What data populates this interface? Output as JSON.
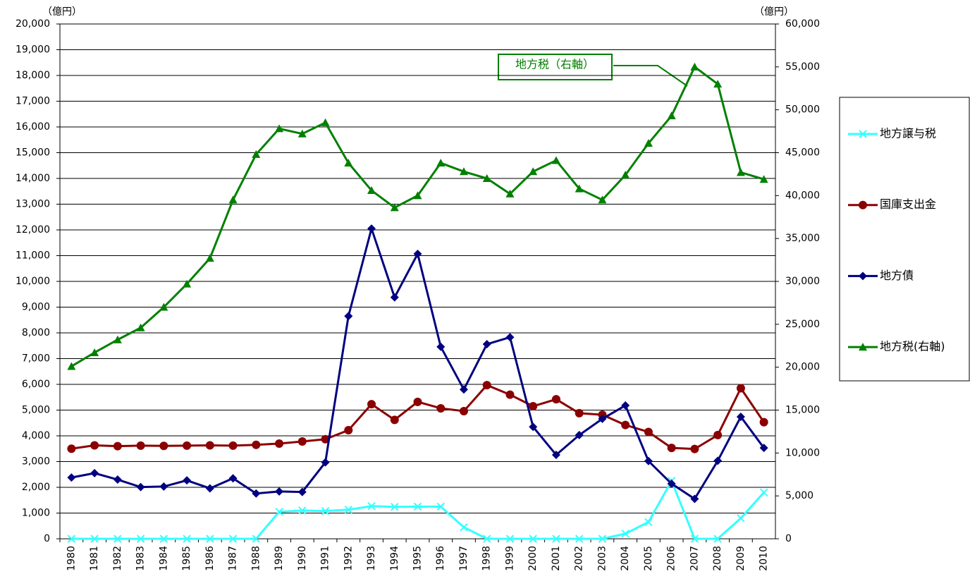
{
  "chart_data": {
    "type": "line",
    "y_unit_label": "（億円）",
    "y2_unit_label": "（億円）",
    "annotation": "地方税（右軸）",
    "categories": [
      "1980",
      "1981",
      "1982",
      "1983",
      "1984",
      "1985",
      "1986",
      "1987",
      "1988",
      "1989",
      "1990",
      "1991",
      "1992",
      "1993",
      "1994",
      "1995",
      "1996",
      "1997",
      "1998",
      "1999",
      "2000",
      "2001",
      "2002",
      "2003",
      "2004",
      "2005",
      "2006",
      "2007",
      "2008",
      "2009",
      "2010"
    ],
    "ylim": [
      0,
      20000
    ],
    "yticks": [
      0,
      {
        "value": 1000,
        "label": "1,000"
      },
      {
        "value": 2000,
        "label": "2,000"
      },
      {
        "value": 3000,
        "label": "3,000"
      },
      {
        "value": 4000,
        "label": "4,000"
      },
      {
        "value": 5000,
        "label": "5,000"
      },
      {
        "value": 6000,
        "label": "6,000"
      },
      {
        "value": 7000,
        "label": "7,000"
      },
      {
        "value": 8000,
        "label": "8,000"
      },
      {
        "value": 9000,
        "label": "9,000"
      },
      {
        "value": 10000,
        "label": "10,000"
      },
      {
        "value": 11000,
        "label": "11,000"
      },
      {
        "value": 12000,
        "label": "12,000"
      },
      {
        "value": 13000,
        "label": "13,000"
      },
      {
        "value": 14000,
        "label": "14,000"
      },
      {
        "value": 15000,
        "label": "15,000"
      },
      {
        "value": 16000,
        "label": "16,000"
      },
      {
        "value": 17000,
        "label": "17,000"
      },
      {
        "value": 18000,
        "label": "18,000"
      },
      {
        "value": 19000,
        "label": "19,000"
      },
      {
        "value": 20000,
        "label": "20,000"
      }
    ],
    "y2lim": [
      0,
      60000
    ],
    "y2ticks": [
      0,
      {
        "value": 5000,
        "label": "5,000"
      },
      {
        "value": 10000,
        "label": "10,000"
      },
      {
        "value": 15000,
        "label": "15,000"
      },
      {
        "value": 20000,
        "label": "20,000"
      },
      {
        "value": 25000,
        "label": "25,000"
      },
      {
        "value": 30000,
        "label": "30,000"
      },
      {
        "value": 35000,
        "label": "35,000"
      },
      {
        "value": 40000,
        "label": "40,000"
      },
      {
        "value": 45000,
        "label": "45,000"
      },
      {
        "value": 50000,
        "label": "50,000"
      },
      {
        "value": 55000,
        "label": "55,000"
      },
      {
        "value": 60000,
        "label": "60,000"
      }
    ],
    "grid": true,
    "legend": "right",
    "series": [
      {
        "name": "地方譲与税",
        "color": "#33ffff",
        "marker": "x",
        "values": [
          0,
          0,
          0,
          0,
          0,
          0,
          0,
          0,
          0,
          1050,
          1100,
          1080,
          1130,
          1270,
          1240,
          1250,
          1250,
          450,
          0,
          0,
          0,
          0,
          0,
          0,
          200,
          650,
          2250,
          0,
          0,
          800,
          1800
        ]
      },
      {
        "name": "国庫支出金",
        "color": "#8b0000",
        "marker": "circle",
        "values": [
          3500,
          3630,
          3600,
          3620,
          3610,
          3620,
          3630,
          3620,
          3650,
          3700,
          3780,
          3870,
          4220,
          5230,
          4620,
          5320,
          5070,
          4960,
          5970,
          5600,
          5150,
          5420,
          4880,
          4820,
          4420,
          4150,
          3530,
          3490,
          4030,
          5850,
          4530
        ]
      },
      {
        "name": "地方債",
        "color": "#000080",
        "marker": "diamond",
        "values": [
          2380,
          2550,
          2300,
          2010,
          2030,
          2270,
          1960,
          2350,
          1760,
          1840,
          1820,
          2970,
          8650,
          12050,
          9380,
          11070,
          7460,
          5800,
          7560,
          7830,
          4350,
          3260,
          4030,
          4660,
          5180,
          3020,
          2140,
          1550,
          3030,
          4740,
          3530
        ]
      },
      {
        "name": "地方税(右軸)",
        "color": "#008000",
        "marker": "triangle",
        "axis": "y2",
        "values": [
          20100,
          21700,
          23200,
          24600,
          27000,
          29700,
          32700,
          39500,
          44800,
          47800,
          47200,
          48500,
          43800,
          40600,
          38600,
          40000,
          43800,
          42800,
          42000,
          40200,
          42800,
          44100,
          40800,
          39500,
          42400,
          46100,
          49300,
          55000,
          53000,
          42700,
          41900
        ]
      }
    ]
  }
}
